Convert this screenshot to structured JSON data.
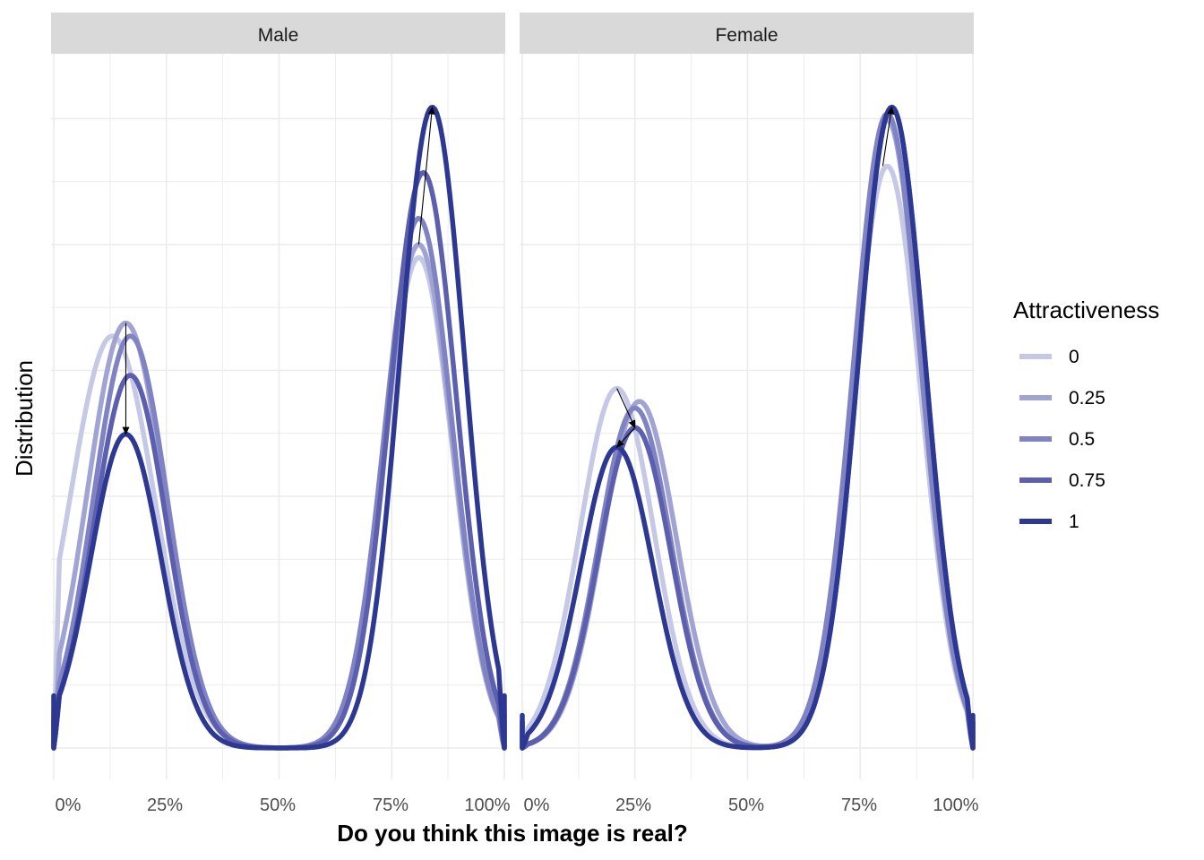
{
  "chart_data": {
    "type": "line",
    "xlabel": "Do you think this image is real?",
    "ylabel": "Distribution",
    "x_ticks": [
      "0%",
      "25%",
      "50%",
      "75%",
      "100%"
    ],
    "xlim": [
      0,
      1
    ],
    "ylim": [
      0,
      1
    ],
    "y_tick_labels_shown": false,
    "grid": true,
    "legend": {
      "title": "Attractiveness",
      "placement": "right",
      "entries": [
        {
          "label": "0",
          "color": "#c6c9e6"
        },
        {
          "label": "0.25",
          "color": "#a1a4d3"
        },
        {
          "label": "0.5",
          "color": "#8083c3"
        },
        {
          "label": "0.75",
          "color": "#5c5fae"
        },
        {
          "label": "1",
          "color": "#2d3893"
        }
      ]
    },
    "panels": [
      {
        "strip": "Male",
        "series": [
          {
            "name": "0",
            "mu1": 0.13,
            "s1": 0.094,
            "h1": 0.63,
            "mu2": 0.81,
            "s2": 0.075,
            "h2": 0.75,
            "end": 0.08
          },
          {
            "name": "0.25",
            "mu1": 0.16,
            "s1": 0.085,
            "h1": 0.65,
            "mu2": 0.81,
            "s2": 0.075,
            "h2": 0.77,
            "end": 0.06
          },
          {
            "name": "0.5",
            "mu1": 0.17,
            "s1": 0.082,
            "h1": 0.63,
            "mu2": 0.81,
            "s2": 0.075,
            "h2": 0.81,
            "end": 0.05
          },
          {
            "name": "0.75",
            "mu1": 0.17,
            "s1": 0.08,
            "h1": 0.57,
            "mu2": 0.82,
            "s2": 0.074,
            "h2": 0.88,
            "end": 0.04
          },
          {
            "name": "1",
            "mu1": 0.16,
            "s1": 0.078,
            "h1": 0.48,
            "mu2": 0.84,
            "s2": 0.072,
            "h2": 0.98,
            "end": 0.08
          }
        ],
        "arrows": [
          {
            "from": [
              0.16,
              0.65
            ],
            "to": [
              0.16,
              0.48
            ]
          },
          {
            "from": [
              0.81,
              0.77
            ],
            "to": [
              0.84,
              0.98
            ]
          }
        ]
      },
      {
        "strip": "Female",
        "series": [
          {
            "name": "0",
            "mu1": 0.21,
            "s1": 0.082,
            "h1": 0.55,
            "mu2": 0.81,
            "s2": 0.075,
            "h2": 0.89,
            "end": 0.04
          },
          {
            "name": "0.25",
            "mu1": 0.26,
            "s1": 0.082,
            "h1": 0.53,
            "mu2": 0.81,
            "s2": 0.075,
            "h2": 0.96,
            "end": 0.04
          },
          {
            "name": "0.5",
            "mu1": 0.25,
            "s1": 0.08,
            "h1": 0.52,
            "mu2": 0.81,
            "s2": 0.075,
            "h2": 0.97,
            "end": 0.04
          },
          {
            "name": "0.75",
            "mu1": 0.25,
            "s1": 0.08,
            "h1": 0.49,
            "mu2": 0.82,
            "s2": 0.074,
            "h2": 0.98,
            "end": 0.04
          },
          {
            "name": "1",
            "mu1": 0.21,
            "s1": 0.08,
            "h1": 0.46,
            "mu2": 0.82,
            "s2": 0.074,
            "h2": 0.98,
            "end": 0.05
          }
        ],
        "arrows": [
          {
            "from": [
              0.21,
              0.55
            ],
            "to": [
              0.25,
              0.49
            ]
          },
          {
            "from": [
              0.25,
              0.49
            ],
            "to": [
              0.21,
              0.46
            ]
          },
          {
            "from": [
              0.8,
              0.89
            ],
            "to": [
              0.82,
              0.98
            ]
          }
        ]
      }
    ]
  }
}
